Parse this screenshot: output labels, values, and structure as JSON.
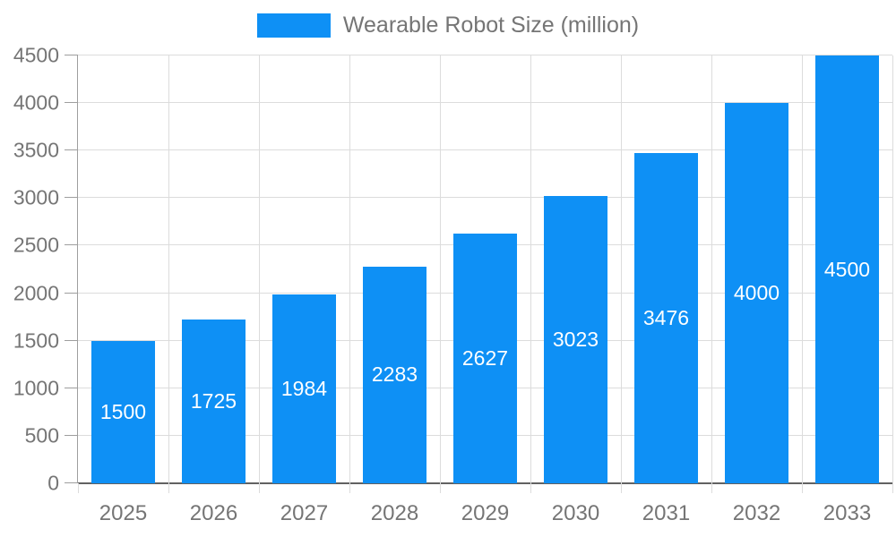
{
  "chart_data": {
    "type": "bar",
    "title": "Wearable Robot Size (million)",
    "categories": [
      "2025",
      "2026",
      "2027",
      "2028",
      "2029",
      "2030",
      "2031",
      "2032",
      "2033"
    ],
    "series": [
      {
        "name": "Wearable Robot Size (million)",
        "values": [
          1500,
          1725,
          1984,
          2283,
          2627,
          3023,
          3476,
          4000,
          4500
        ]
      }
    ],
    "xlabel": "",
    "ylabel": "",
    "ylim": [
      0,
      4500
    ],
    "y_ticks": [
      0,
      500,
      1000,
      1500,
      2000,
      2500,
      3000,
      3500,
      4000,
      4500
    ],
    "grid": true,
    "legend_position": "top-center",
    "value_label_position": "inside-center"
  },
  "legend": {
    "label": "Wearable Robot Size (million)"
  },
  "colors": {
    "bar": "#0e90f5",
    "value_label": "#ffffff",
    "axis_label": "#757575",
    "gridline": "#dcdcdc",
    "axis_line": "#9e9e9e",
    "baseline": "#616161"
  }
}
